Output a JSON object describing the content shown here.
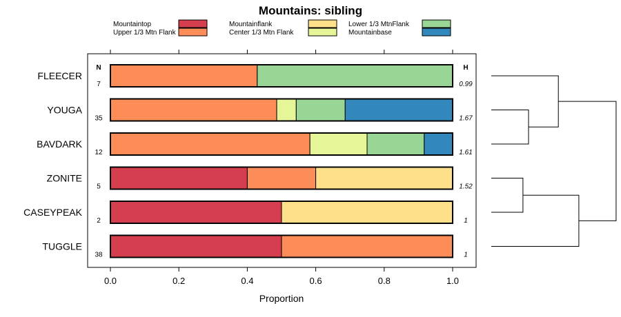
{
  "chart_data": {
    "type": "bar",
    "subtype": "stacked-horizontal-proportion",
    "title": "Mountains: sibling",
    "xlabel": "Proportion",
    "xlim": [
      0,
      1
    ],
    "xticks": [
      "0.0",
      "0.2",
      "0.4",
      "0.6",
      "0.8",
      "1.0"
    ],
    "n_header": "N",
    "h_header": "H",
    "legend": [
      {
        "label": "Mountaintop",
        "color": "#d53e4f"
      },
      {
        "label": "Upper 1/3 Mtn Flank",
        "color": "#fc8d59"
      },
      {
        "label": "Mountainflank",
        "color": "#fee08b"
      },
      {
        "label": "Center 1/3 Mtn Flank",
        "color": "#e6f598"
      },
      {
        "label": "Lower 1/3 MtnFlank",
        "color": "#99d594"
      },
      {
        "label": "Mountainbase",
        "color": "#3288bd"
      }
    ],
    "categories": [
      "FLEECER",
      "YOUGA",
      "BAVDARK",
      "ZONITE",
      "CASEYPEAK",
      "TUGGLE"
    ],
    "n": [
      "7",
      "35",
      "12",
      "5",
      "2",
      "38"
    ],
    "h": [
      "0.99",
      "1.67",
      "1.61",
      "1.52",
      "1",
      "1"
    ],
    "series": [
      {
        "name": "Mountaintop",
        "values": [
          0,
          0,
          0,
          0.4,
          0.5,
          0.5
        ]
      },
      {
        "name": "Upper 1/3 Mtn Flank",
        "values": [
          0.429,
          0.486,
          0.583,
          0.2,
          0,
          0.5
        ]
      },
      {
        "name": "Mountainflank",
        "values": [
          0,
          0,
          0,
          0.4,
          0.5,
          0
        ]
      },
      {
        "name": "Center 1/3 Mtn Flank",
        "values": [
          0,
          0.057,
          0.167,
          0,
          0,
          0
        ]
      },
      {
        "name": "Lower 1/3 MtnFlank",
        "values": [
          0.571,
          0.143,
          0.167,
          0,
          0,
          0
        ]
      },
      {
        "name": "Mountainbase",
        "values": [
          0,
          0.314,
          0.083,
          0,
          0,
          0
        ]
      }
    ],
    "dendrogram": {
      "description": "hierarchical clustering of categories",
      "merges": [
        {
          "left": "YOUGA",
          "right": "BAVDARK",
          "height": 0.2
        },
        {
          "left": "FLEECER",
          "right": "YOUGA+BAVDARK",
          "height": 0.36
        },
        {
          "left": "ZONITE",
          "right": "CASEYPEAK",
          "height": 0.17
        },
        {
          "left": "ZONITE+CASEYPEAK",
          "right": "TUGGLE",
          "height": 0.47
        },
        {
          "left": "FLEECER+YOUGA+BAVDARK",
          "right": "ZONITE+CASEYPEAK+TUGGLE",
          "height": 0.67
        }
      ]
    }
  }
}
